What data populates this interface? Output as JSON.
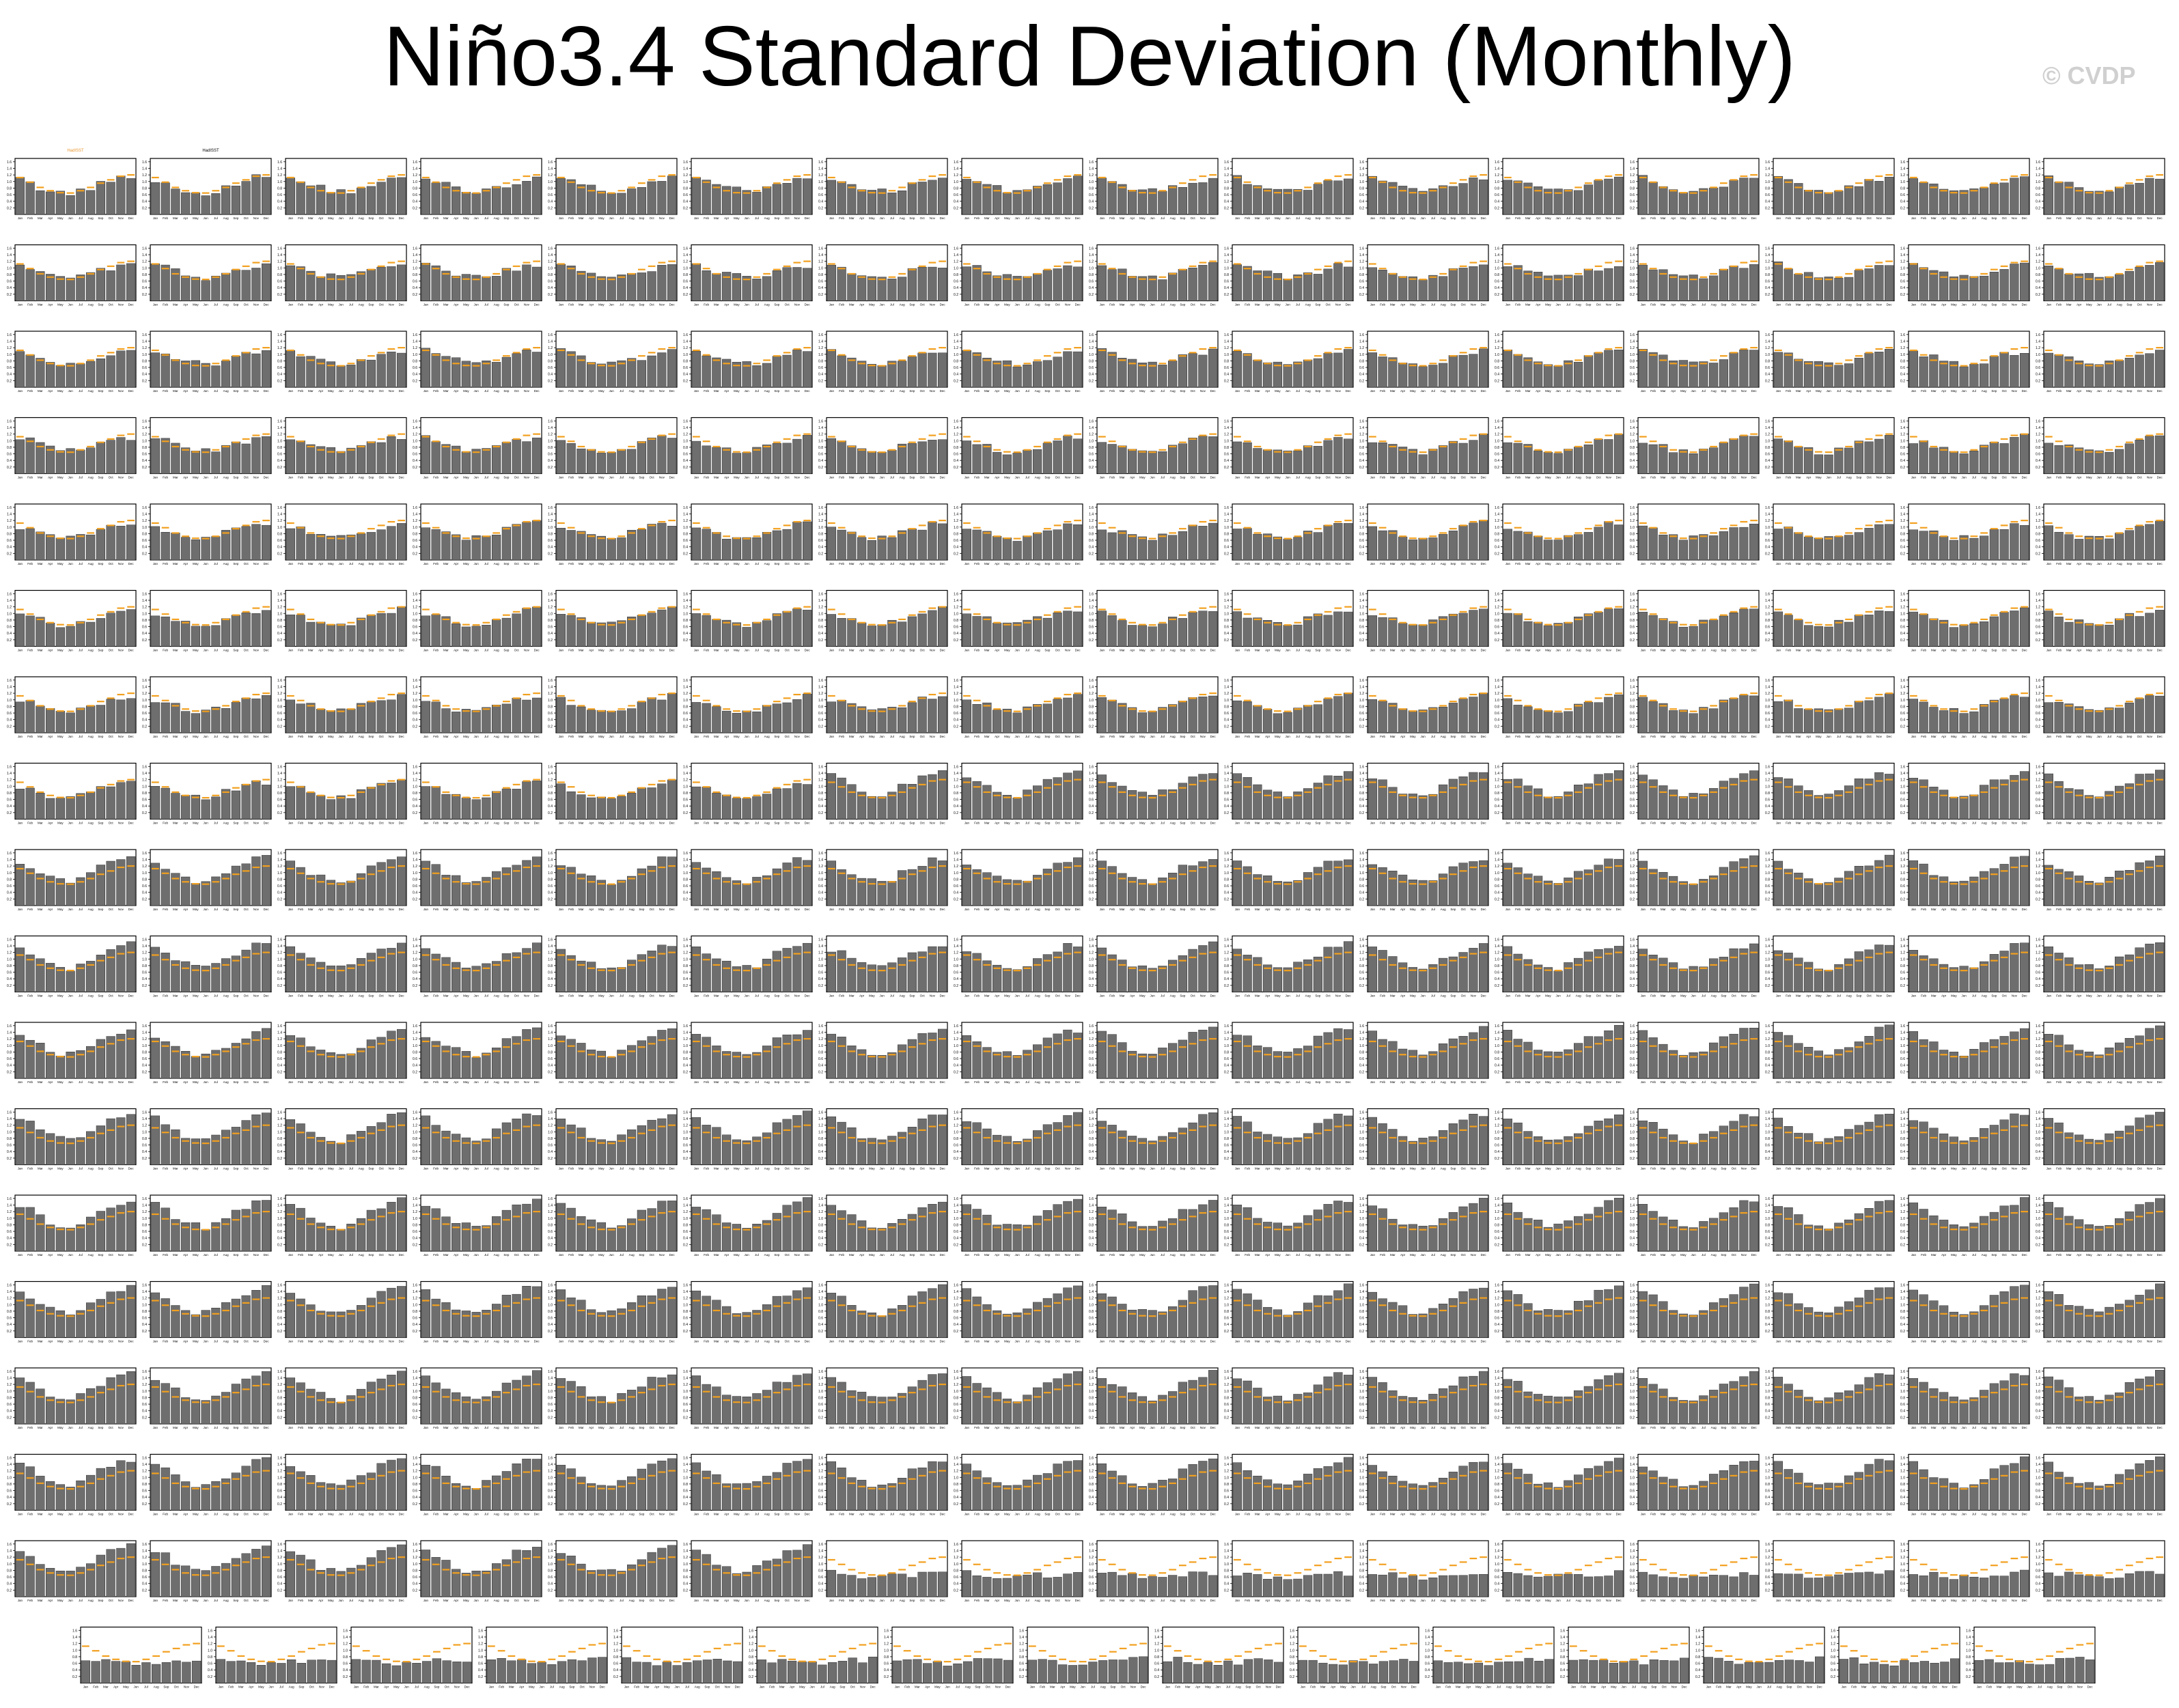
{
  "title": "Niño3.4 Standard Deviation (Monthly)",
  "watermark": "© CVDP",
  "colors": {
    "bar": "#6e6e6e",
    "bar_stroke": "#333333",
    "reference": "#f2a01f",
    "obs_title": "#e8962f",
    "model_access": "#1f7fb4",
    "model_canesm": "#7a7a7a",
    "model_cesm": "#b0731f",
    "model_cesm1": "#7777dd",
    "model_last": "#c8a06a"
  },
  "chart_data": {
    "type": "bar",
    "layout": "small-multiples",
    "categories": [
      "Jan",
      "Feb",
      "Mar",
      "Apr",
      "May",
      "Jun",
      "Jul",
      "Aug",
      "Sep",
      "Oct",
      "Nov",
      "Dec"
    ],
    "ylim": [
      0,
      1.7
    ],
    "yticks": [
      0.2,
      0.4,
      0.6,
      0.8,
      1.0,
      1.2,
      1.4,
      1.6
    ],
    "reference_series": {
      "name": "HadISST",
      "values": [
        1.12,
        0.98,
        0.82,
        0.72,
        0.66,
        0.65,
        0.72,
        0.82,
        0.95,
        1.05,
        1.16,
        1.2
      ]
    },
    "panels_full_rows": 17,
    "panels_per_row": 16,
    "panels_last_row": 15,
    "panel_titles": {
      "first": "HadISST",
      "second": "HadISST"
    },
    "shape_profiles": [
      {
        "kind": "observations",
        "values": [
          1.05,
          0.95,
          0.8,
          0.7,
          0.65,
          0.64,
          0.72,
          0.8,
          0.92,
          1.02,
          1.12,
          1.18
        ]
      },
      {
        "kind": "access",
        "values": [
          1.1,
          1.0,
          0.9,
          0.82,
          0.75,
          0.7,
          0.72,
          0.8,
          0.9,
          0.98,
          1.05,
          1.08
        ]
      },
      {
        "kind": "canesm",
        "values": [
          1.0,
          0.92,
          0.82,
          0.72,
          0.66,
          0.66,
          0.72,
          0.82,
          0.92,
          1.0,
          1.08,
          1.12
        ]
      },
      {
        "kind": "cesm",
        "values": [
          1.3,
          1.18,
          1.0,
          0.85,
          0.75,
          0.72,
          0.82,
          0.98,
          1.15,
          1.28,
          1.4,
          1.45
        ]
      },
      {
        "kind": "cesm1",
        "values": [
          1.4,
          1.25,
          1.05,
          0.88,
          0.78,
          0.74,
          0.86,
          1.02,
          1.2,
          1.35,
          1.48,
          1.55
        ]
      },
      {
        "kind": "flat",
        "values": [
          0.72,
          0.7,
          0.66,
          0.62,
          0.6,
          0.6,
          0.62,
          0.64,
          0.66,
          0.68,
          0.7,
          0.72
        ]
      }
    ]
  }
}
